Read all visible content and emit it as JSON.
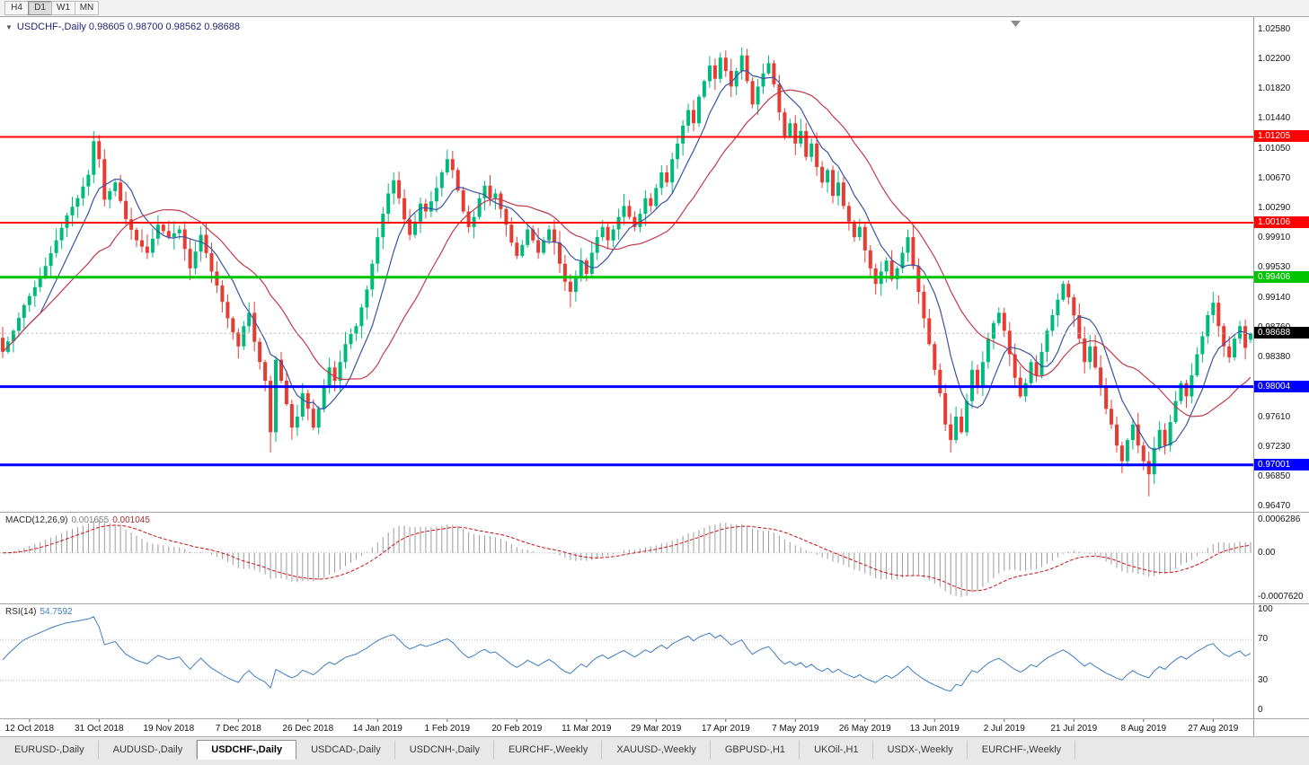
{
  "toolbar": {
    "timeframes": [
      {
        "label": "H4",
        "active": false
      },
      {
        "label": "D1",
        "active": true
      },
      {
        "label": "W1",
        "active": false
      },
      {
        "label": "MN",
        "active": false
      }
    ]
  },
  "chart": {
    "title": {
      "symbol": "USDCHF-,Daily",
      "open": "0.98605",
      "high": "0.98700",
      "low": "0.98562",
      "close": "0.98688"
    },
    "colors": {
      "up": "#00b97c",
      "down": "#e83b32",
      "ma_fast": "#3a53a4",
      "ma_slow": "#c0394b",
      "macd_hist": "#9b9b9b",
      "macd_signal": "#cc1111",
      "rsi": "#3f7cc1",
      "line_red": "#ff0000",
      "line_green": "#00c400",
      "line_blue": "#0000ff",
      "current_tag": "#000000"
    },
    "price_axis": {
      "ticks": [
        "1.02580",
        "1.02200",
        "1.01820",
        "1.01440",
        "1.01050",
        "1.00670",
        "1.00290",
        "0.99910",
        "0.99530",
        "0.99140",
        "0.98760",
        "0.98380",
        "0.98000",
        "0.97610",
        "0.97230",
        "0.96850",
        "0.96470"
      ]
    },
    "hlines": [
      {
        "price": 1.01205,
        "label": "1.01205",
        "color": "#ff0000",
        "width": 2
      },
      {
        "price": 1.00106,
        "label": "1.00106",
        "color": "#ff0000",
        "width": 2
      },
      {
        "price": 0.99406,
        "label": "0.99406",
        "color": "#00c400",
        "width": 3
      },
      {
        "price": 0.98004,
        "label": "0.98004",
        "color": "#0000ff",
        "width": 3
      },
      {
        "price": 0.97001,
        "label": "0.97001",
        "color": "#0000ff",
        "width": 3
      }
    ],
    "current_price": {
      "value": 0.98688,
      "label": "0.98688"
    },
    "chart_data": {
      "type": "candlestick",
      "symbol": "USDCHF",
      "timeframe": "Daily",
      "bars": 234,
      "x_range": [
        "12 Oct 2018",
        "5 Sep 2019"
      ],
      "y_range": [
        0.9647,
        1.0258
      ],
      "last_candle": {
        "open": 0.98605,
        "high": 0.987,
        "low": 0.98562,
        "close": 0.98688
      },
      "close_anchors": [
        [
          0,
          0.9845
        ],
        [
          2,
          0.9872
        ],
        [
          4,
          0.9905
        ],
        [
          6,
          0.9928
        ],
        [
          8,
          0.9955
        ],
        [
          10,
          0.9988
        ],
        [
          12,
          1.002
        ],
        [
          14,
          1.0042
        ],
        [
          16,
          1.0072
        ],
        [
          17,
          1.0115
        ],
        [
          18,
          1.0092
        ],
        [
          19,
          1.004
        ],
        [
          21,
          1.0062
        ],
        [
          23,
          1.0015
        ],
        [
          25,
          0.9988
        ],
        [
          27,
          0.9972
        ],
        [
          29,
          1.0008
        ],
        [
          31,
          0.9992
        ],
        [
          33,
          1.0002
        ],
        [
          35,
          0.9952
        ],
        [
          37,
          0.9995
        ],
        [
          39,
          0.9948
        ],
        [
          40,
          0.993
        ],
        [
          42,
          0.9888
        ],
        [
          44,
          0.9852
        ],
        [
          45,
          0.9878
        ],
        [
          46,
          0.9895
        ],
        [
          47,
          0.9858
        ],
        [
          48,
          0.9832
        ],
        [
          49,
          0.9808
        ],
        [
          50,
          0.9742
        ],
        [
          51,
          0.9835
        ],
        [
          52,
          0.9808
        ],
        [
          53,
          0.9778
        ],
        [
          54,
          0.9748
        ],
        [
          55,
          0.9762
        ],
        [
          56,
          0.9792
        ],
        [
          57,
          0.9772
        ],
        [
          58,
          0.9748
        ],
        [
          59,
          0.9772
        ],
        [
          60,
          0.9802
        ],
        [
          61,
          0.9825
        ],
        [
          62,
          0.9808
        ],
        [
          63,
          0.9832
        ],
        [
          64,
          0.9855
        ],
        [
          65,
          0.9868
        ],
        [
          66,
          0.9878
        ],
        [
          67,
          0.9902
        ],
        [
          68,
          0.9925
        ],
        [
          69,
          0.9958
        ],
        [
          70,
          0.9992
        ],
        [
          71,
          1.0022
        ],
        [
          72,
          1.0048
        ],
        [
          73,
          1.0065
        ],
        [
          74,
          1.0042
        ],
        [
          75,
          1.0015
        ],
        [
          76,
          0.9995
        ],
        [
          77,
          1.0012
        ],
        [
          78,
          1.0035
        ],
        [
          79,
          1.0025
        ],
        [
          80,
          1.0038
        ],
        [
          81,
          1.0055
        ],
        [
          82,
          1.0075
        ],
        [
          83,
          1.0092
        ],
        [
          84,
          1.0078
        ],
        [
          85,
          1.0052
        ],
        [
          86,
          1.0025
        ],
        [
          87,
          1.0005
        ],
        [
          88,
          1.0018
        ],
        [
          89,
          1.0042
        ],
        [
          90,
          1.0058
        ],
        [
          91,
          1.0042
        ],
        [
          92,
          1.0048
        ],
        [
          93,
          1.0028
        ],
        [
          94,
          1.0008
        ],
        [
          95,
          0.9985
        ],
        [
          96,
          0.9968
        ],
        [
          97,
          0.9982
        ],
        [
          98,
          1.0002
        ],
        [
          99,
          0.9988
        ],
        [
          100,
          0.9972
        ],
        [
          101,
          0.9988
        ],
        [
          102,
          1.0002
        ],
        [
          103,
          0.9985
        ],
        [
          104,
          0.9958
        ],
        [
          105,
          0.9935
        ],
        [
          106,
          0.9922
        ],
        [
          107,
          0.9942
        ],
        [
          108,
          0.9962
        ],
        [
          109,
          0.9945
        ],
        [
          110,
          0.9972
        ],
        [
          111,
          0.9992
        ],
        [
          112,
          1.0005
        ],
        [
          113,
          0.9988
        ],
        [
          114,
          1.0002
        ],
        [
          115,
          1.0018
        ],
        [
          116,
          1.0032
        ],
        [
          117,
          1.0018
        ],
        [
          118,
          1.0005
        ],
        [
          119,
          1.0022
        ],
        [
          120,
          1.0042
        ],
        [
          121,
          1.0032
        ],
        [
          122,
          1.0055
        ],
        [
          123,
          1.0075
        ],
        [
          124,
          1.0062
        ],
        [
          125,
          1.0092
        ],
        [
          126,
          1.0112
        ],
        [
          127,
          1.0135
        ],
        [
          128,
          1.0155
        ],
        [
          129,
          1.0138
        ],
        [
          130,
          1.0172
        ],
        [
          131,
          1.0192
        ],
        [
          132,
          1.0212
        ],
        [
          133,
          1.0195
        ],
        [
          134,
          1.0222
        ],
        [
          135,
          1.0205
        ],
        [
          136,
          1.0185
        ],
        [
          137,
          1.0205
        ],
        [
          138,
          1.0225
        ],
        [
          139,
          1.0192
        ],
        [
          140,
          1.0162
        ],
        [
          141,
          1.0185
        ],
        [
          142,
          1.0202
        ],
        [
          143,
          1.0215
        ],
        [
          144,
          1.0188
        ],
        [
          145,
          1.0152
        ],
        [
          146,
          1.0122
        ],
        [
          147,
          1.0138
        ],
        [
          148,
          1.0112
        ],
        [
          149,
          1.0128
        ],
        [
          150,
          1.0095
        ],
        [
          151,
          1.0112
        ],
        [
          152,
          1.0082
        ],
        [
          153,
          1.0062
        ],
        [
          154,
          1.0078
        ],
        [
          155,
          1.0045
        ],
        [
          156,
          1.0062
        ],
        [
          157,
          1.0032
        ],
        [
          158,
          1.0012
        ],
        [
          159,
          0.9992
        ],
        [
          160,
          1.0005
        ],
        [
          161,
          0.9975
        ],
        [
          162,
          0.9952
        ],
        [
          163,
          0.9932
        ],
        [
          164,
          0.9948
        ],
        [
          165,
          0.9962
        ],
        [
          166,
          0.9938
        ],
        [
          167,
          0.9952
        ],
        [
          168,
          0.9972
        ],
        [
          169,
          0.9992
        ],
        [
          170,
          0.9955
        ],
        [
          171,
          0.9922
        ],
        [
          172,
          0.9888
        ],
        [
          173,
          0.9855
        ],
        [
          174,
          0.9822
        ],
        [
          175,
          0.9792
        ],
        [
          176,
          0.9752
        ],
        [
          177,
          0.9732
        ],
        [
          178,
          0.9762
        ],
        [
          179,
          0.9742
        ],
        [
          180,
          0.9782
        ],
        [
          181,
          0.9822
        ],
        [
          182,
          0.9802
        ],
        [
          183,
          0.9832
        ],
        [
          184,
          0.9862
        ],
        [
          185,
          0.9882
        ],
        [
          186,
          0.9895
        ],
        [
          187,
          0.9872
        ],
        [
          188,
          0.9842
        ],
        [
          189,
          0.9812
        ],
        [
          190,
          0.9788
        ],
        [
          191,
          0.9805
        ],
        [
          192,
          0.9832
        ],
        [
          193,
          0.9815
        ],
        [
          194,
          0.9845
        ],
        [
          195,
          0.9872
        ],
        [
          196,
          0.9892
        ],
        [
          197,
          0.9912
        ],
        [
          198,
          0.9932
        ],
        [
          199,
          0.9915
        ],
        [
          200,
          0.9892
        ],
        [
          201,
          0.9862
        ],
        [
          202,
          0.9832
        ],
        [
          203,
          0.9852
        ],
        [
          204,
          0.9825
        ],
        [
          205,
          0.9802
        ],
        [
          206,
          0.9772
        ],
        [
          207,
          0.9752
        ],
        [
          208,
          0.9725
        ],
        [
          209,
          0.9705
        ],
        [
          210,
          0.9732
        ],
        [
          211,
          0.9752
        ],
        [
          212,
          0.9725
        ],
        [
          213,
          0.9705
        ],
        [
          214,
          0.9688
        ],
        [
          215,
          0.9722
        ],
        [
          216,
          0.9745
        ],
        [
          217,
          0.9725
        ],
        [
          218,
          0.9755
        ],
        [
          219,
          0.9782
        ],
        [
          220,
          0.9805
        ],
        [
          221,
          0.9788
        ],
        [
          222,
          0.9815
        ],
        [
          223,
          0.9842
        ],
        [
          224,
          0.9865
        ],
        [
          225,
          0.9892
        ],
        [
          226,
          0.9908
        ],
        [
          227,
          0.9878
        ],
        [
          228,
          0.9852
        ],
        [
          229,
          0.9838
        ],
        [
          230,
          0.9862
        ],
        [
          231,
          0.9878
        ],
        [
          232,
          0.985
        ],
        [
          233,
          0.98688
        ]
      ],
      "spikes": [
        {
          "i": 17,
          "h": 1.0128
        },
        {
          "i": 50,
          "l": 0.9716
        },
        {
          "i": 54,
          "l": 0.9734
        },
        {
          "i": 83,
          "h": 1.0098
        },
        {
          "i": 106,
          "l": 0.9902
        },
        {
          "i": 138,
          "h": 1.0235
        },
        {
          "i": 177,
          "l": 0.9716
        },
        {
          "i": 214,
          "l": 0.966
        },
        {
          "i": 226,
          "h": 0.9922
        }
      ]
    }
  },
  "macd": {
    "label": "MACD(12,26,9)",
    "value_main": "0.001655",
    "value_signal": "0.001045",
    "axis": [
      "0.0006286",
      "0.00",
      "-0.0007620"
    ]
  },
  "rsi": {
    "label": "RSI(14)",
    "value": "54.7592",
    "axis": [
      "100",
      "70",
      "30",
      "0"
    ],
    "levels": [
      70,
      30
    ]
  },
  "date_axis": {
    "labels": [
      "12 Oct 2018",
      "31 Oct 2018",
      "19 Nov 2018",
      "7 Dec 2018",
      "26 Dec 2018",
      "14 Jan 2019",
      "1 Feb 2019",
      "20 Feb 2019",
      "11 Mar 2019",
      "29 Mar 2019",
      "17 Apr 2019",
      "7 May 2019",
      "26 May 2019",
      "13 Jun 2019",
      "2 Jul 2019",
      "21 Jul 2019",
      "8 Aug 2019",
      "27 Aug 2019"
    ]
  },
  "tabs": [
    {
      "label": "EURUSD-,Daily",
      "active": false
    },
    {
      "label": "AUDUSD-,Daily",
      "active": false
    },
    {
      "label": "USDCHF-,Daily",
      "active": true
    },
    {
      "label": "USDCAD-,Daily",
      "active": false
    },
    {
      "label": "USDCNH-,Daily",
      "active": false
    },
    {
      "label": "EURCHF-,Weekly",
      "active": false
    },
    {
      "label": "XAUUSD-,Weekly",
      "active": false
    },
    {
      "label": "GBPUSD-,H1",
      "active": false
    },
    {
      "label": "UKOil-,H1",
      "active": false
    },
    {
      "label": "USDX-,Weekly",
      "active": false
    },
    {
      "label": "EURCHF-,Weekly",
      "active": false
    }
  ]
}
